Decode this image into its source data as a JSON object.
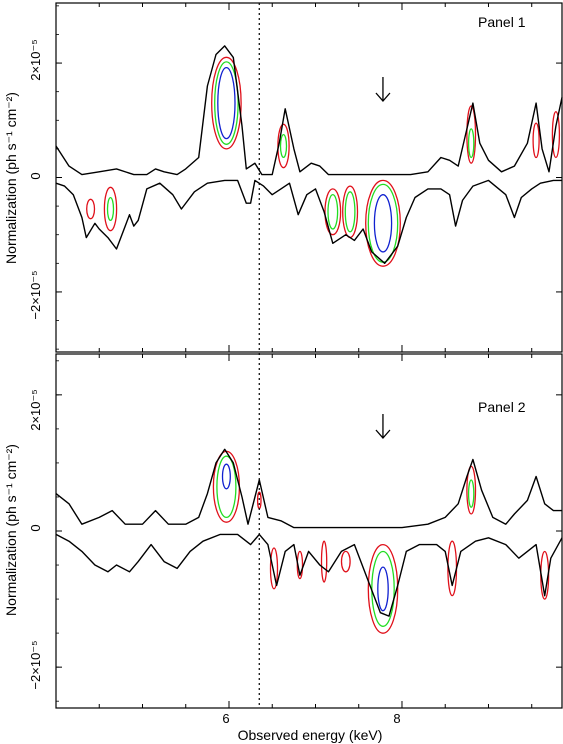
{
  "chart_data": {
    "type": "contour",
    "xlabel": "Observed energy (keV)",
    "x_ticks": [
      {
        "value": 6,
        "label": "6"
      },
      {
        "value": 8,
        "label": "8"
      }
    ],
    "xlim": [
      4.0,
      9.85
    ],
    "reference_line": {
      "x": 6.35,
      "style": "dotted"
    },
    "contour_colors": {
      "outer": "#e0101a",
      "middle": "#22dd22",
      "inner": "#1020d0"
    },
    "panels": [
      {
        "label": "Panel 1",
        "ylabel": "Normalization (ph s⁻¹ cm⁻²)",
        "ylim": [
          -3.05e-05,
          3.05e-05
        ],
        "y_ticks": [
          {
            "value": 2e-05,
            "label": "2×10⁻⁵"
          },
          {
            "value": 0,
            "label": "0"
          },
          {
            "value": -2e-05,
            "label": "−2×10⁻⁵"
          }
        ],
        "arrow_x": 7.78,
        "upper_envelope": [
          [
            4.0,
            5.5e-06
          ],
          [
            4.15,
            2e-06
          ],
          [
            4.3,
            5e-07
          ],
          [
            4.5,
            1e-06
          ],
          [
            4.7,
            1.5e-06
          ],
          [
            4.9,
            5e-07
          ],
          [
            5.05,
            5e-07
          ],
          [
            5.15,
            1.5e-06
          ],
          [
            5.25,
            1e-06
          ],
          [
            5.4,
            5e-07
          ],
          [
            5.5,
            1.5e-06
          ],
          [
            5.65,
            3.5e-06
          ],
          [
            5.75,
            1.6e-05
          ],
          [
            5.85,
            2.15e-05
          ],
          [
            5.95,
            2.3e-05
          ],
          [
            6.05,
            2.1e-05
          ],
          [
            6.15,
            9e-06
          ],
          [
            6.2,
            1.5e-06
          ],
          [
            6.3,
            2.5e-06
          ],
          [
            6.38,
            5e-07
          ],
          [
            6.5,
            5e-07
          ],
          [
            6.58,
            6e-06
          ],
          [
            6.65,
            1.2e-05
          ],
          [
            6.75,
            5e-06
          ],
          [
            6.82,
            1e-06
          ],
          [
            6.95,
            2.5e-06
          ],
          [
            7.05,
            2e-06
          ],
          [
            7.15,
            5e-07
          ],
          [
            7.3,
            5e-07
          ],
          [
            7.5,
            5e-07
          ],
          [
            7.8,
            5e-07
          ],
          [
            8.1,
            5e-07
          ],
          [
            8.3,
            1e-06
          ],
          [
            8.45,
            3.5e-06
          ],
          [
            8.55,
            3e-06
          ],
          [
            8.65,
            2e-06
          ],
          [
            8.75,
            8.5e-06
          ],
          [
            8.82,
            1.3e-05
          ],
          [
            8.9,
            6e-06
          ],
          [
            9.0,
            3e-06
          ],
          [
            9.15,
            1e-06
          ],
          [
            9.3,
            2e-06
          ],
          [
            9.45,
            6e-06
          ],
          [
            9.55,
            1.3e-05
          ],
          [
            9.62,
            5e-06
          ],
          [
            9.7,
            1e-06
          ],
          [
            9.78,
            9e-06
          ],
          [
            9.85,
            1.4e-05
          ]
        ],
        "lower_envelope": [
          [
            4.0,
            -1e-06
          ],
          [
            4.1,
            -1.5e-06
          ],
          [
            4.2,
            -3e-06
          ],
          [
            4.3,
            -7e-06
          ],
          [
            4.35,
            -1.05e-05
          ],
          [
            4.45,
            -8e-06
          ],
          [
            4.5,
            -9e-06
          ],
          [
            4.6,
            -1.05e-05
          ],
          [
            4.7,
            -1.25e-05
          ],
          [
            4.8,
            -8.5e-06
          ],
          [
            4.85,
            -6.5e-06
          ],
          [
            4.9,
            -8.5e-06
          ],
          [
            4.95,
            -7.5e-06
          ],
          [
            5.05,
            -2e-06
          ],
          [
            5.2,
            -1e-06
          ],
          [
            5.35,
            -3e-06
          ],
          [
            5.45,
            -5.5e-06
          ],
          [
            5.6,
            -2.5e-06
          ],
          [
            5.75,
            -1e-06
          ],
          [
            5.95,
            -5e-07
          ],
          [
            6.1,
            -5e-07
          ],
          [
            6.2,
            -4.5e-06
          ],
          [
            6.25,
            -4.5e-06
          ],
          [
            6.3,
            -5e-07
          ],
          [
            6.4,
            -1.5e-06
          ],
          [
            6.5,
            -3e-06
          ],
          [
            6.6,
            -2e-06
          ],
          [
            6.7,
            -1e-06
          ],
          [
            6.8,
            -6.5e-06
          ],
          [
            6.9,
            -3e-06
          ],
          [
            7.0,
            -2e-06
          ],
          [
            7.1,
            -6e-06
          ],
          [
            7.2,
            -1.15e-05
          ],
          [
            7.35,
            -1e-05
          ],
          [
            7.45,
            -1.1e-05
          ],
          [
            7.55,
            -9e-06
          ],
          [
            7.65,
            -1.3e-05
          ],
          [
            7.8,
            -1.5e-05
          ],
          [
            7.95,
            -1.2e-05
          ],
          [
            8.05,
            -7e-06
          ],
          [
            8.15,
            -3.5e-06
          ],
          [
            8.3,
            -2e-06
          ],
          [
            8.45,
            -2e-06
          ],
          [
            8.55,
            -3e-06
          ],
          [
            8.62,
            -8.5e-06
          ],
          [
            8.7,
            -4e-06
          ],
          [
            8.82,
            -1.5e-06
          ],
          [
            9.0,
            -5e-07
          ],
          [
            9.2,
            -3e-06
          ],
          [
            9.3,
            -7e-06
          ],
          [
            9.38,
            -3.5e-06
          ],
          [
            9.5,
            -2e-06
          ],
          [
            9.6,
            -1e-06
          ],
          [
            9.75,
            -5e-07
          ],
          [
            9.85,
            -5e-07
          ]
        ],
        "contours": [
          {
            "level": "outer",
            "cx": 5.97,
            "cy": 1.3e-05,
            "rx": 0.17,
            "ry": 8e-06
          },
          {
            "level": "middle",
            "cx": 5.97,
            "cy": 1.3e-05,
            "rx": 0.135,
            "ry": 7.2e-06
          },
          {
            "level": "inner",
            "cx": 5.97,
            "cy": 1.3e-05,
            "rx": 0.1,
            "ry": 6.2e-06
          },
          {
            "level": "outer",
            "cx": 6.63,
            "cy": 5.5e-06,
            "rx": 0.065,
            "ry": 3.8e-06
          },
          {
            "level": "middle",
            "cx": 6.63,
            "cy": 5.5e-06,
            "rx": 0.035,
            "ry": 2e-06
          },
          {
            "level": "outer",
            "cx": 8.8,
            "cy": 7.5e-06,
            "rx": 0.05,
            "ry": 5e-06
          },
          {
            "level": "middle",
            "cx": 8.8,
            "cy": 6e-06,
            "rx": 0.03,
            "ry": 2.5e-06
          },
          {
            "level": "outer",
            "cx": 9.55,
            "cy": 6.5e-06,
            "rx": 0.035,
            "ry": 3e-06
          },
          {
            "level": "outer",
            "cx": 9.78,
            "cy": 7.5e-06,
            "rx": 0.04,
            "ry": 4e-06
          },
          {
            "level": "outer",
            "cx": 4.4,
            "cy": -5.5e-06,
            "rx": 0.045,
            "ry": 1.7e-06
          },
          {
            "level": "outer",
            "cx": 4.63,
            "cy": -5.5e-06,
            "rx": 0.07,
            "ry": 3.8e-06
          },
          {
            "level": "middle",
            "cx": 4.63,
            "cy": -5.5e-06,
            "rx": 0.035,
            "ry": 2e-06
          },
          {
            "level": "outer",
            "cx": 7.2,
            "cy": -6e-06,
            "rx": 0.09,
            "ry": 4e-06
          },
          {
            "level": "middle",
            "cx": 7.2,
            "cy": -6e-06,
            "rx": 0.055,
            "ry": 3e-06
          },
          {
            "level": "outer",
            "cx": 7.4,
            "cy": -6e-06,
            "rx": 0.085,
            "ry": 4.5e-06
          },
          {
            "level": "middle",
            "cx": 7.4,
            "cy": -6e-06,
            "rx": 0.055,
            "ry": 3.5e-06
          },
          {
            "level": "outer",
            "cx": 7.78,
            "cy": -8e-06,
            "rx": 0.2,
            "ry": 7.5e-06
          },
          {
            "level": "middle",
            "cx": 7.78,
            "cy": -8e-06,
            "rx": 0.17,
            "ry": 6.8e-06
          },
          {
            "level": "inner",
            "cx": 7.78,
            "cy": -8e-06,
            "rx": 0.1,
            "ry": 5e-06
          }
        ]
      },
      {
        "label": "Panel 2",
        "ylabel": "Normalization (ph s⁻¹ cm⁻²)",
        "ylim": [
          -2.6e-05,
          2.6e-05
        ],
        "y_ticks": [
          {
            "value": 2e-05,
            "label": "2×10⁻⁵"
          },
          {
            "value": 0,
            "label": "0"
          },
          {
            "value": -2e-05,
            "label": "−2×10⁻⁵"
          }
        ],
        "arrow_x": 7.78,
        "upper_envelope": [
          [
            4.0,
            5.5e-06
          ],
          [
            4.15,
            4e-06
          ],
          [
            4.3,
            1e-06
          ],
          [
            4.5,
            2e-06
          ],
          [
            4.65,
            3e-06
          ],
          [
            4.8,
            1e-06
          ],
          [
            5.0,
            1e-06
          ],
          [
            5.15,
            3e-06
          ],
          [
            5.3,
            1e-06
          ],
          [
            5.5,
            1e-06
          ],
          [
            5.65,
            2e-06
          ],
          [
            5.75,
            5.5e-06
          ],
          [
            5.85,
            1e-05
          ],
          [
            5.95,
            1.2e-05
          ],
          [
            6.05,
            1e-05
          ],
          [
            6.15,
            5e-06
          ],
          [
            6.22,
            1e-06
          ],
          [
            6.35,
            7.5e-06
          ],
          [
            6.45,
            2e-06
          ],
          [
            6.6,
            1.5e-06
          ],
          [
            6.75,
            5e-07
          ],
          [
            7.0,
            5e-07
          ],
          [
            7.5,
            5e-07
          ],
          [
            8.0,
            5e-07
          ],
          [
            8.3,
            1e-06
          ],
          [
            8.5,
            2e-06
          ],
          [
            8.65,
            4e-06
          ],
          [
            8.75,
            8e-06
          ],
          [
            8.82,
            1.05e-05
          ],
          [
            8.92,
            6e-06
          ],
          [
            9.05,
            2e-06
          ],
          [
            9.2,
            1e-06
          ],
          [
            9.3,
            2.5e-06
          ],
          [
            9.45,
            4.5e-06
          ],
          [
            9.55,
            8e-06
          ],
          [
            9.65,
            4e-06
          ],
          [
            9.75,
            3e-06
          ],
          [
            9.85,
            3e-06
          ]
        ],
        "lower_envelope": [
          [
            4.0,
            -5e-07
          ],
          [
            4.15,
            -1.5e-06
          ],
          [
            4.3,
            -3e-06
          ],
          [
            4.45,
            -5e-06
          ],
          [
            4.6,
            -6e-06
          ],
          [
            4.7,
            -5e-06
          ],
          [
            4.85,
            -6e-06
          ],
          [
            4.95,
            -4.5e-06
          ],
          [
            5.1,
            -2e-06
          ],
          [
            5.25,
            -4.5e-06
          ],
          [
            5.4,
            -5.5e-06
          ],
          [
            5.55,
            -3e-06
          ],
          [
            5.7,
            -1.5e-06
          ],
          [
            5.9,
            -5e-07
          ],
          [
            6.1,
            -5e-07
          ],
          [
            6.25,
            -2e-06
          ],
          [
            6.35,
            -5e-07
          ],
          [
            6.45,
            -2e-06
          ],
          [
            6.55,
            -8e-06
          ],
          [
            6.65,
            -3e-06
          ],
          [
            6.75,
            -2e-06
          ],
          [
            6.82,
            -6.5e-06
          ],
          [
            6.92,
            -3e-06
          ],
          [
            7.05,
            -5e-06
          ],
          [
            7.15,
            -6e-06
          ],
          [
            7.3,
            -3e-06
          ],
          [
            7.45,
            -2e-06
          ],
          [
            7.6,
            -7e-06
          ],
          [
            7.75,
            -1.2e-05
          ],
          [
            7.85,
            -1.25e-05
          ],
          [
            7.95,
            -8e-06
          ],
          [
            8.05,
            -3e-06
          ],
          [
            8.2,
            -2e-06
          ],
          [
            8.4,
            -2e-06
          ],
          [
            8.5,
            -3e-06
          ],
          [
            8.58,
            -8e-06
          ],
          [
            8.68,
            -3e-06
          ],
          [
            8.85,
            -1.5e-06
          ],
          [
            9.0,
            -1e-06
          ],
          [
            9.2,
            -2e-06
          ],
          [
            9.35,
            -4e-06
          ],
          [
            9.45,
            -3e-06
          ],
          [
            9.55,
            -2e-06
          ],
          [
            9.65,
            -9.5e-06
          ],
          [
            9.72,
            -4e-06
          ],
          [
            9.85,
            -1e-06
          ]
        ],
        "contours": [
          {
            "level": "outer",
            "cx": 5.97,
            "cy": 6.5e-06,
            "rx": 0.15,
            "ry": 5.2e-06
          },
          {
            "level": "middle",
            "cx": 5.97,
            "cy": 6.5e-06,
            "rx": 0.11,
            "ry": 4.5e-06
          },
          {
            "level": "inner",
            "cx": 5.97,
            "cy": 8e-06,
            "rx": 0.045,
            "ry": 1.8e-06
          },
          {
            "level": "outer",
            "cx": 6.35,
            "cy": 4.5e-06,
            "rx": 0.02,
            "ry": 1.2e-06
          },
          {
            "level": "outer",
            "cx": 8.8,
            "cy": 6e-06,
            "rx": 0.05,
            "ry": 3.5e-06
          },
          {
            "level": "middle",
            "cx": 8.8,
            "cy": 5.5e-06,
            "rx": 0.03,
            "ry": 2e-06
          },
          {
            "level": "outer",
            "cx": 6.52,
            "cy": -5.5e-06,
            "rx": 0.04,
            "ry": 3e-06
          },
          {
            "level": "outer",
            "cx": 6.82,
            "cy": -5e-06,
            "rx": 0.03,
            "ry": 2e-06
          },
          {
            "level": "outer",
            "cx": 7.1,
            "cy": -4.5e-06,
            "rx": 0.03,
            "ry": 3e-06
          },
          {
            "level": "outer",
            "cx": 7.35,
            "cy": -4.5e-06,
            "rx": 0.05,
            "ry": 1.5e-06
          },
          {
            "level": "outer",
            "cx": 7.78,
            "cy": -8.5e-06,
            "rx": 0.17,
            "ry": 6.5e-06
          },
          {
            "level": "middle",
            "cx": 7.78,
            "cy": -8.5e-06,
            "rx": 0.13,
            "ry": 5.5e-06
          },
          {
            "level": "inner",
            "cx": 7.78,
            "cy": -8.5e-06,
            "rx": 0.06,
            "ry": 3.2e-06
          },
          {
            "level": "outer",
            "cx": 8.58,
            "cy": -5.5e-06,
            "rx": 0.05,
            "ry": 4e-06
          },
          {
            "level": "outer",
            "cx": 9.65,
            "cy": -6.5e-06,
            "rx": 0.045,
            "ry": 3.5e-06
          }
        ]
      }
    ]
  }
}
